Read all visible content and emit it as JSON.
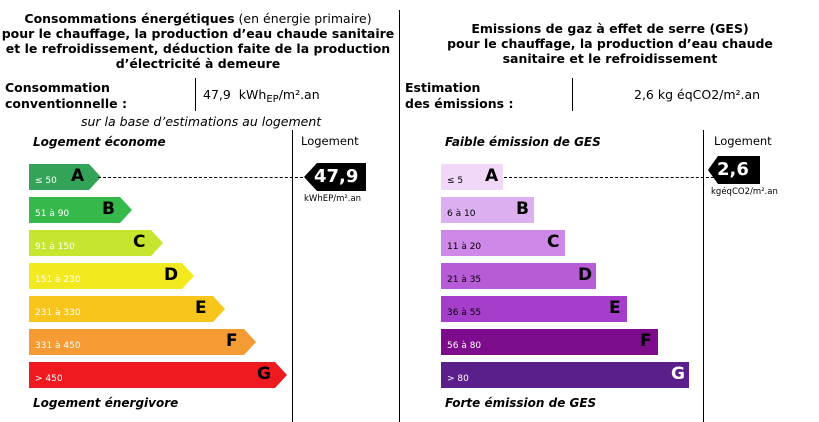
{
  "energy": {
    "header_bold_1": "Consommations énergétiques",
    "header_thin_1": " (en énergie primaire)",
    "header_line_2": "pour le chauffage, la production d’eau chaude sanitaire",
    "header_line_3": "et le refroidissement, déduction faite de la production",
    "header_line_4": "d’électricité à demeure",
    "label_line_1": "Consommation",
    "label_line_2": "conventionnelle :",
    "value_number": "47,9",
    "value_unit_pre": "kWh",
    "value_unit_sub": "EP",
    "value_unit_post": "/m².an",
    "note": "sur la base d’estimations au logement",
    "scale_top": "Logement économe",
    "scale_bottom": "Logement énergivore",
    "logement_header": "Logement",
    "pointer_value": "47,9",
    "pointer_unit": "kWhEP/m².an",
    "classes": [
      {
        "letter": "A",
        "range": "≤ 50",
        "color": "#33a357"
      },
      {
        "letter": "B",
        "range": "51 à 90",
        "color": "#35b94a"
      },
      {
        "letter": "C",
        "range": "91 à 150",
        "color": "#c6e52e"
      },
      {
        "letter": "D",
        "range": "151 à 230",
        "color": "#f2ea1f"
      },
      {
        "letter": "E",
        "range": "231 à 330",
        "color": "#f8c51d"
      },
      {
        "letter": "F",
        "range": "331 à 450",
        "color": "#f59b34"
      },
      {
        "letter": "G",
        "range": "> 450",
        "color": "#ef1a1f"
      }
    ],
    "current_class": "A"
  },
  "ges": {
    "header_line_1": "Emissions de gaz à effet de serre (GES)",
    "header_line_2": "pour le chauffage, la production d’eau chaude",
    "header_line_3": "sanitaire et le refroidissement",
    "label_line_1": "Estimation",
    "label_line_2": "des émissions :",
    "value": "2,6 kg éqCO2/m².an",
    "scale_top": "Faible émission de GES",
    "scale_bottom": "Forte émission de GES",
    "logement_header": "Logement",
    "pointer_value": "2,6",
    "pointer_unit": "kgéqCO2/m².an",
    "classes": [
      {
        "letter": "A",
        "range": "≤ 5",
        "color": "#f2d8f8"
      },
      {
        "letter": "B",
        "range": "6 à 10",
        "color": "#dcaff0"
      },
      {
        "letter": "C",
        "range": "11 à 20",
        "color": "#cd88e8"
      },
      {
        "letter": "D",
        "range": "21 à 35",
        "color": "#b75bd6"
      },
      {
        "letter": "E",
        "range": "36 à 55",
        "color": "#a43ecb"
      },
      {
        "letter": "F",
        "range": "56 à 80",
        "color": "#7d0c8c"
      },
      {
        "letter": "G",
        "range": "> 80",
        "color": "#5a1f8a"
      }
    ],
    "current_class": "A"
  }
}
